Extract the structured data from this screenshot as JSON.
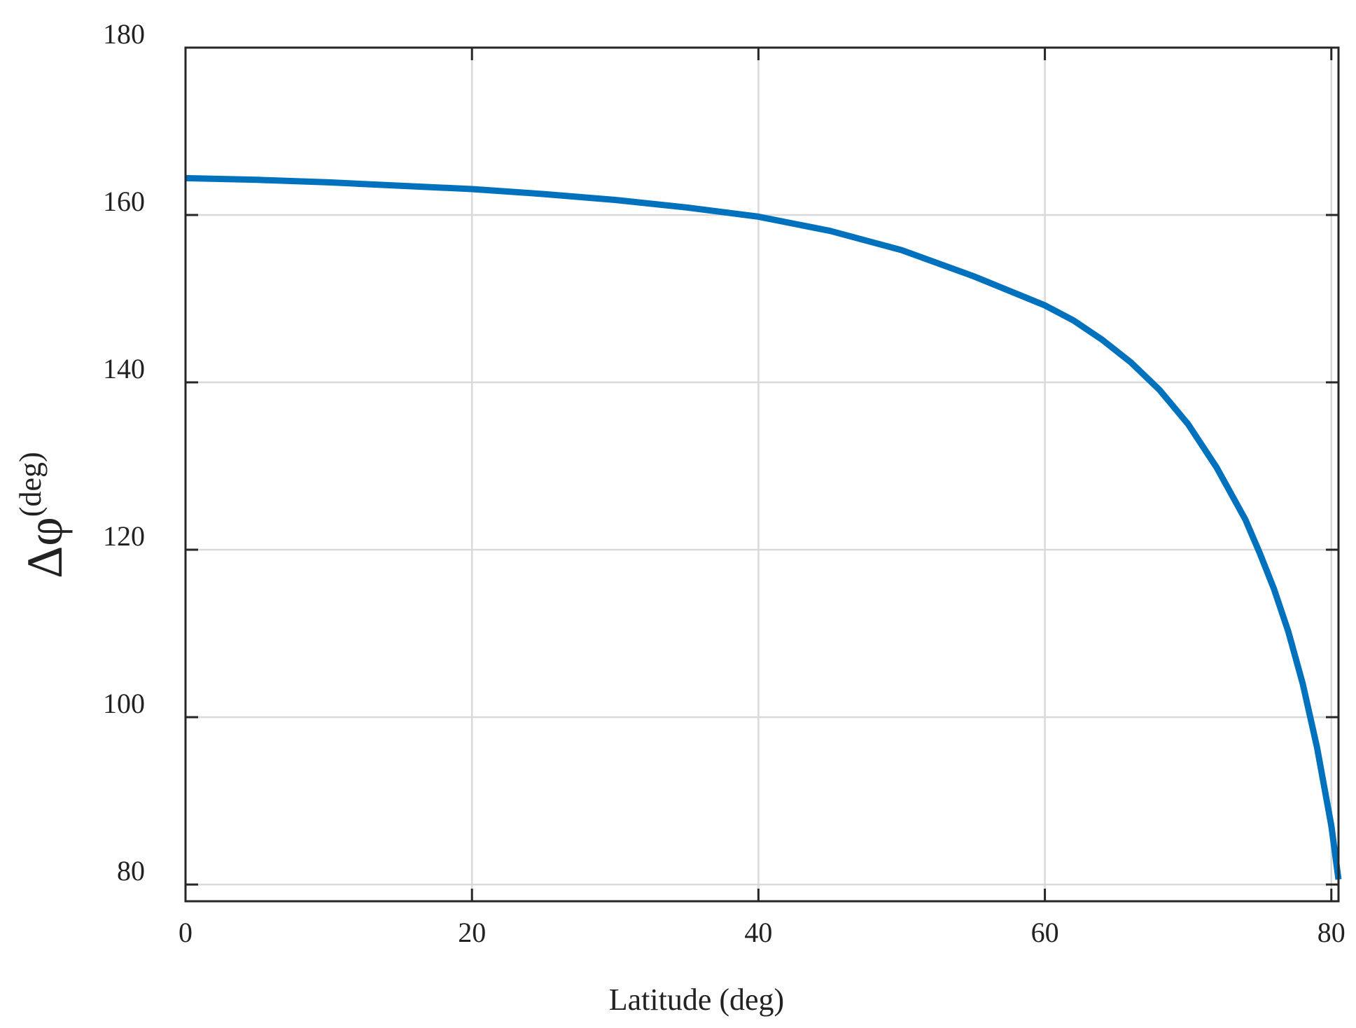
{
  "chart_data": {
    "type": "line",
    "title": "",
    "xlabel": "Latitude (deg)",
    "ylabel": {
      "symbol": "Δφ",
      "superscript": "(deg)"
    },
    "xlim": [
      0,
      80.5
    ],
    "ylim": [
      78,
      180
    ],
    "xticks": [
      "0",
      "20",
      "40",
      "60",
      "80"
    ],
    "xtick_values": [
      0,
      20,
      40,
      60,
      80
    ],
    "yticks": [
      "80",
      "100",
      "120",
      "140",
      "160",
      "180"
    ],
    "ytick_values": [
      80,
      100,
      120,
      140,
      160,
      180
    ],
    "grid": true,
    "line_color": "#0072BD",
    "series": [
      {
        "x": [
          0,
          5,
          10,
          15,
          20,
          25,
          30,
          35,
          40,
          45,
          50,
          55,
          60,
          62,
          64,
          66,
          68,
          70,
          72,
          74,
          75,
          76,
          77,
          78,
          79,
          80,
          80.5
        ],
        "y": [
          164.4,
          164.2,
          163.9,
          163.5,
          163.1,
          162.5,
          161.8,
          160.9,
          159.8,
          158.1,
          155.8,
          152.7,
          149.2,
          147.4,
          145.1,
          142.4,
          139.1,
          135.0,
          129.8,
          123.6,
          119.6,
          115.3,
          110.2,
          104.0,
          96.4,
          87.0,
          80.6
        ]
      }
    ]
  }
}
